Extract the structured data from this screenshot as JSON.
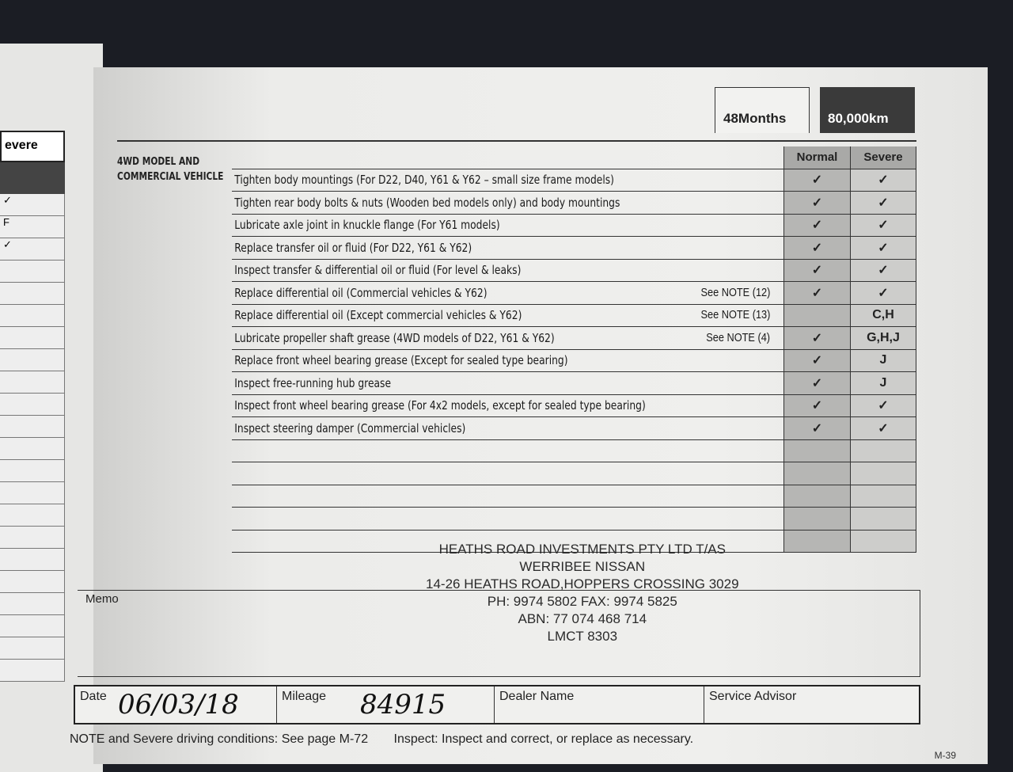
{
  "left_page": {
    "header": "evere",
    "checks": [
      "✓",
      "F",
      "✓",
      "",
      "",
      "",
      "",
      "",
      "",
      "",
      "",
      "",
      "",
      "",
      "",
      "",
      "",
      "",
      "",
      "",
      "",
      ""
    ]
  },
  "header": {
    "months": "48Months",
    "distance": "80,000km"
  },
  "section_label": "4WD MODEL AND COMMERCIAL VEHICLE",
  "columns": {
    "normal": "Normal",
    "severe": "Severe"
  },
  "items": [
    {
      "text": "Tighten body mountings (For D22, D40, Y61 & Y62 – small size frame models)",
      "note": "",
      "normal": "✓",
      "severe": "✓"
    },
    {
      "text": "Tighten rear body bolts & nuts (Wooden bed models only) and body mountings",
      "note": "",
      "normal": "✓",
      "severe": "✓"
    },
    {
      "text": "Lubricate axle joint in knuckle flange (For Y61 models)",
      "note": "",
      "normal": "✓",
      "severe": "✓"
    },
    {
      "text": "Replace transfer oil or fluid (For D22, Y61 & Y62)",
      "note": "",
      "normal": "✓",
      "severe": "✓"
    },
    {
      "text": "Inspect transfer & differential oil or fluid (For level & leaks)",
      "note": "",
      "normal": "✓",
      "severe": "✓"
    },
    {
      "text": "Replace differential oil (Commercial vehicles & Y62)",
      "note": "See NOTE (12)",
      "normal": "✓",
      "severe": "✓"
    },
    {
      "text": "Replace differential oil (Except commercial vehicles & Y62)",
      "note": "See NOTE (13)",
      "normal": "",
      "severe": "C,H"
    },
    {
      "text": "Lubricate propeller shaft grease (4WD models of D22, Y61 & Y62)",
      "note": "See NOTE (4)",
      "normal": "✓",
      "severe": "G,H,J"
    },
    {
      "text": "Replace front wheel bearing grease (Except for sealed type bearing)",
      "note": "",
      "normal": "✓",
      "severe": "J"
    },
    {
      "text": "Inspect free-running hub grease",
      "note": "",
      "normal": "✓",
      "severe": "J"
    },
    {
      "text": "Inspect front wheel bearing grease (For 4x2 models, except for sealed type bearing)",
      "note": "",
      "normal": "✓",
      "severe": "✓"
    },
    {
      "text": "Inspect steering damper (Commercial vehicles)",
      "note": "",
      "normal": "✓",
      "severe": "✓"
    },
    {
      "text": "",
      "note": "",
      "normal": "",
      "severe": ""
    },
    {
      "text": "",
      "note": "",
      "normal": "",
      "severe": ""
    },
    {
      "text": "",
      "note": "",
      "normal": "",
      "severe": ""
    },
    {
      "text": "",
      "note": "",
      "normal": "",
      "severe": ""
    },
    {
      "text": "",
      "note": "",
      "normal": "",
      "severe": ""
    }
  ],
  "stamp": [
    "HEATHS ROAD INVESTMENTS PTY LTD T/AS",
    "WERRIBEE NISSAN",
    "14-26 HEATHS ROAD,HOPPERS CROSSING 3029",
    "PH: 9974 5802 FAX: 9974 5825",
    "ABN: 77 074 468 714",
    "LMCT 8303"
  ],
  "memo_label": "Memo",
  "fields": {
    "date_label": "Date",
    "date_value": "06/03/18",
    "mileage_label": "Mileage",
    "mileage_value": "84915",
    "dealer_label": "Dealer Name",
    "advisor_label": "Service Advisor"
  },
  "footer": {
    "note": "NOTE and Severe driving conditions: See page M-72",
    "inspect": "Inspect: Inspect and correct, or replace as necessary."
  },
  "page_number": "M-39"
}
